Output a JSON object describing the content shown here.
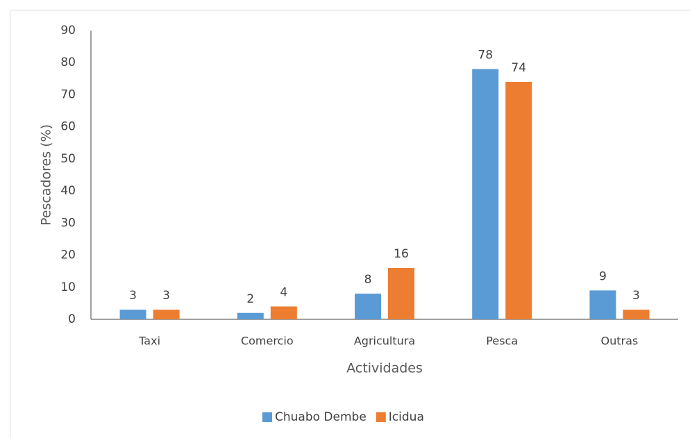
{
  "chart_data": {
    "type": "bar",
    "categories": [
      "Taxi",
      "Comercio",
      "Agricultura",
      "Pesca",
      "Outras"
    ],
    "series": [
      {
        "name": "Chuabo Dembe",
        "color": "#5b9bd5",
        "values": [
          3,
          2,
          8,
          78,
          9
        ]
      },
      {
        "name": "Icidua",
        "color": "#ed7d31",
        "values": [
          3,
          4,
          16,
          74,
          3
        ]
      }
    ],
    "xlabel": "Actividades",
    "ylabel": "Pescadores (%)",
    "ylim": [
      0,
      90
    ],
    "yticks": [
      0,
      10,
      20,
      30,
      40,
      50,
      60,
      70,
      80,
      90
    ],
    "grid": false,
    "legend": "bottom"
  }
}
